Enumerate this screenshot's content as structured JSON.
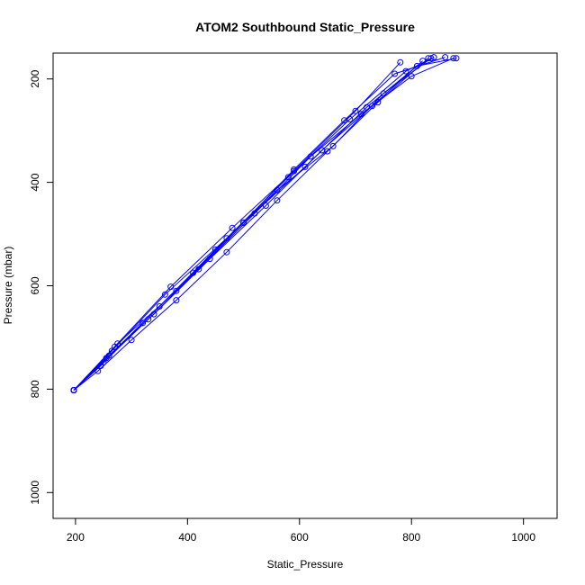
{
  "chart_data": {
    "type": "line",
    "title": "ATOM2 Southbound Static_Pressure",
    "xlabel": "Static_Pressure",
    "ylabel": "Pressure (mbar)",
    "xlim": [
      160,
      1060
    ],
    "ylim": [
      1050,
      150
    ],
    "y_reversed": true,
    "x_ticks": [
      "200",
      "400",
      "600",
      "800",
      "1000"
    ],
    "y_ticks": [
      "200",
      "400",
      "600",
      "800",
      "1000"
    ],
    "grid": false,
    "legend": "none",
    "colors": {
      "series": "#0000ff",
      "axis": "#000000",
      "background": "#ffffff"
    },
    "series": [
      {
        "x": [
          197,
          240,
          300,
          380,
          470,
          560,
          650,
          740,
          830
        ],
        "y": [
          802,
          765,
          705,
          628,
          535,
          435,
          340,
          245,
          160
        ]
      },
      {
        "x": [
          197,
          245,
          320,
          410,
          500,
          590,
          680,
          770,
          860
        ],
        "y": [
          802,
          755,
          672,
          575,
          478,
          375,
          280,
          190,
          158
        ]
      },
      {
        "x": [
          197,
          250,
          330,
          420,
          520,
          620,
          710,
          800,
          875
        ],
        "y": [
          802,
          748,
          665,
          568,
          460,
          350,
          268,
          195,
          160
        ]
      },
      {
        "x": [
          197,
          255,
          340,
          440,
          540,
          640,
          730,
          820
        ],
        "y": [
          802,
          740,
          655,
          548,
          445,
          338,
          252,
          165
        ]
      },
      {
        "x": [
          197,
          260,
          350,
          450,
          560,
          660,
          750,
          835
        ],
        "y": [
          802,
          735,
          640,
          530,
          415,
          330,
          228,
          160
        ]
      },
      {
        "x": [
          197,
          265,
          360,
          470,
          580,
          690,
          790,
          840
        ],
        "y": [
          802,
          726,
          617,
          508,
          390,
          278,
          185,
          158
        ]
      },
      {
        "x": [
          197,
          270,
          370,
          480,
          590,
          700,
          780
        ],
        "y": [
          802,
          718,
          602,
          488,
          378,
          262,
          168
        ]
      },
      {
        "x": [
          197,
          275,
          380,
          500,
          610,
          720,
          810,
          880
        ],
        "y": [
          802,
          712,
          610,
          478,
          370,
          255,
          175,
          160
        ]
      }
    ]
  }
}
